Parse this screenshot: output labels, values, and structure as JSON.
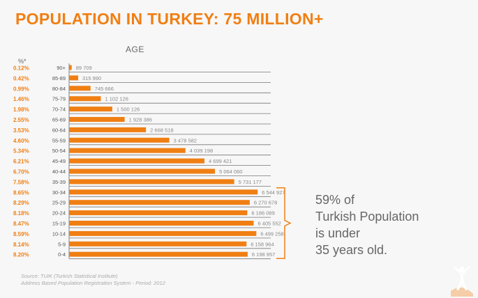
{
  "title": "POPULATION IN TURKEY: 75 MILLION+",
  "callout": {
    "lines": [
      "59% of",
      "Turkish Population",
      "is under",
      "35 years old."
    ],
    "bracket_color": "#f07f13"
  },
  "source": {
    "line1": "Source: TUIK (Turkish Statistical Institute)",
    "line2": "Address Based Population Registration System - Period: 2012"
  },
  "colors": {
    "accent": "#f07f13",
    "text": "#666666"
  },
  "chart_data": {
    "type": "bar",
    "orientation": "horizontal",
    "title": "AGE",
    "pct_header": "%*",
    "categories": [
      "90+",
      "85-89",
      "80-84",
      "75-79",
      "70-74",
      "65-69",
      "60-64",
      "55-59",
      "50-54",
      "45-49",
      "40-44",
      "35-39",
      "30-34",
      "25-29",
      "20-24",
      "15-19",
      "10-14",
      "5-9",
      "0-4"
    ],
    "values": [
      89709,
      315990,
      745666,
      1102126,
      1500126,
      1928386,
      2668518,
      3478582,
      4039198,
      4699421,
      5064060,
      5731177,
      6544927,
      6270678,
      6186089,
      6405552,
      6499258,
      6158964,
      6198957
    ],
    "value_labels": [
      "89 709",
      "315 990",
      "745 666",
      "1 102 126",
      "1 500 126",
      "1 928 386",
      "2 668 518",
      "3 478 582",
      "4 039 198",
      "4 699 421",
      "5 064 060",
      "5 731 177",
      "6 544 927",
      "6 270 678",
      "6 186 089",
      "6 405 552",
      "6 499 258",
      "6 158 964",
      "6 198 957"
    ],
    "percentages": [
      "0.12%",
      "0.42%",
      "0.99%",
      "1.46%",
      "1.98%",
      "2.55%",
      "3.53%",
      "4.60%",
      "5.34%",
      "6.21%",
      "6.70%",
      "7.58%",
      "8.65%",
      "8.29%",
      "8.18%",
      "8.47%",
      "8.59%",
      "8.14%",
      "8.20%"
    ],
    "bar_color": "#f07f13",
    "grid": true
  }
}
